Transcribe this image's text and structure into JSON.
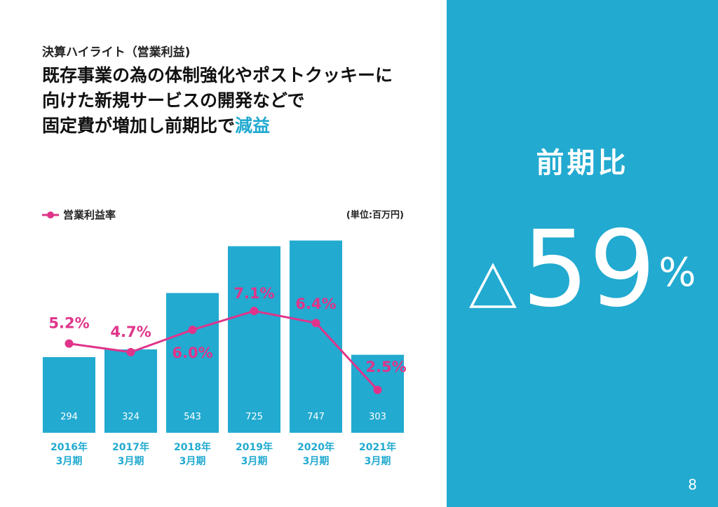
{
  "header": {
    "subtitle": "決算ハイライト（営業利益)",
    "headline_line1": "既存事業の為の体制強化やポストクッキーに",
    "headline_line2": "向けた新規サービスの開発などで",
    "headline_line3_prefix": "固定費が増加し前期比で",
    "headline_line3_accent": "減益"
  },
  "unit_label": "(単位:百万円)",
  "chart_data": {
    "type": "bar",
    "categories": [
      "2016年\n3月期",
      "2017年\n3月期",
      "2018年\n3月期",
      "2019年\n3月期",
      "2020年\n3月期",
      "2021年\n3月期"
    ],
    "category_lines": [
      [
        "2016年",
        "3月期"
      ],
      [
        "2017年",
        "3月期"
      ],
      [
        "2018年",
        "3月期"
      ],
      [
        "2019年",
        "3月期"
      ],
      [
        "2020年",
        "3月期"
      ],
      [
        "2021年",
        "3月期"
      ]
    ],
    "series": [
      {
        "name": "営業利益",
        "type": "bar",
        "values": [
          294,
          324,
          543,
          725,
          747,
          303
        ],
        "labels": [
          "294",
          "324",
          "543",
          "725",
          "747",
          "303"
        ]
      },
      {
        "name": "営業利益率",
        "type": "line",
        "values": [
          5.2,
          4.7,
          6.0,
          7.1,
          6.4,
          2.5
        ],
        "labels": [
          "5.2%",
          "4.7%",
          "6.0%",
          "7.1%",
          "6.4%",
          "2.5%"
        ]
      }
    ],
    "bar_ylim": [
      0,
      800
    ],
    "line_ylim": [
      0,
      12
    ],
    "legend": {
      "label": "営業利益率",
      "position": "top-left"
    },
    "grid": false,
    "colors": {
      "bar": "#22aad0",
      "line": "#e0348a",
      "axis_label": "#22aad0",
      "bar_label": "#ffffff"
    }
  },
  "panel": {
    "label": "前期比",
    "value": "59",
    "percent": "%",
    "color": "#22aad0"
  },
  "page_number": "8"
}
